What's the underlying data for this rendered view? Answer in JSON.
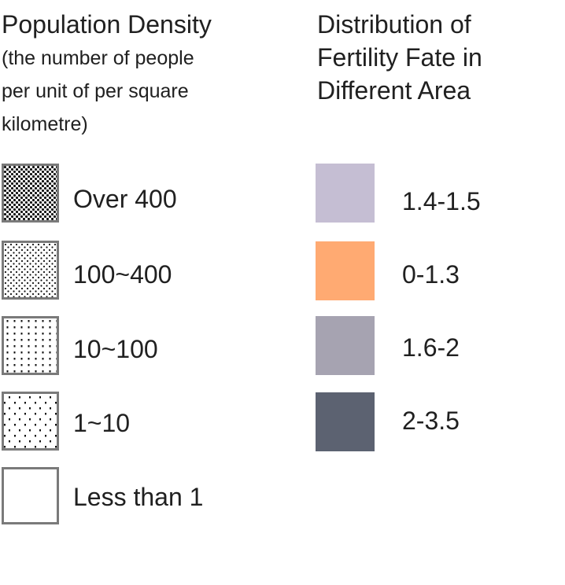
{
  "density": {
    "title": "Population Density",
    "subtitle_lines": [
      "(the number of people",
      "per unit of per square",
      "kilometre)"
    ],
    "items": [
      {
        "label": "Over 400",
        "pattern": "dense-dots-icon"
      },
      {
        "label": "100~400",
        "pattern": "medium-dots-icon"
      },
      {
        "label": "10~100",
        "pattern": "column-dots-icon"
      },
      {
        "label": "1~10",
        "pattern": "sparse-dots-icon"
      },
      {
        "label": "Less than 1",
        "pattern": "blank-icon"
      }
    ]
  },
  "fertility": {
    "title_lines": [
      "Distribution of",
      "Fertility Fate in",
      "Different Area"
    ],
    "items": [
      {
        "label": "1.4-1.5",
        "color": "#C5BED3"
      },
      {
        "label": "0-1.3",
        "color": "#FFAA72"
      },
      {
        "label": "1.6-2",
        "color": "#A6A3B1"
      },
      {
        "label": "2-3.5",
        "color": "#5C6271"
      }
    ]
  }
}
